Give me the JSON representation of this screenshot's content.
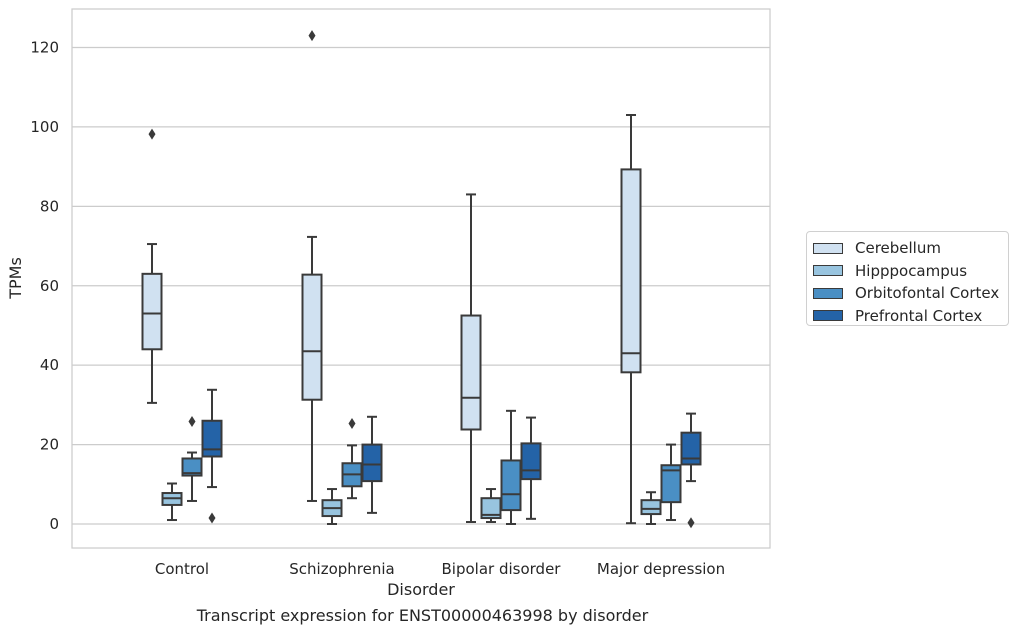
{
  "chart_data": {
    "type": "box",
    "caption": "Transcript expression for ENST00000463998 by disorder",
    "xlabel": "Disorder",
    "ylabel": "TPMs",
    "ylim": [
      -6,
      130
    ],
    "yticks": [
      0,
      20,
      40,
      60,
      80,
      100,
      120
    ],
    "grid": "horizontal",
    "legend_position": "right",
    "categories": [
      "Control",
      "Schizophrenia",
      "Bipolar disorder",
      "Major depression"
    ],
    "series": [
      {
        "name": "Cerebellum",
        "color": "#d0e1f1",
        "boxes": [
          {
            "whislo": 30.5,
            "q1": 44,
            "med": 53,
            "q3": 63,
            "whishi": 70.5,
            "fliers": [
              98.2
            ]
          },
          {
            "whislo": 5.8,
            "q1": 31.3,
            "med": 43.5,
            "q3": 62.8,
            "whishi": 72.3,
            "fliers": [
              123
            ]
          },
          {
            "whislo": 0.5,
            "q1": 23.8,
            "med": 31.8,
            "q3": 52.5,
            "whishi": 83,
            "fliers": []
          },
          {
            "whislo": 0.2,
            "q1": 38.2,
            "med": 43,
            "q3": 89.3,
            "whishi": 103,
            "fliers": []
          }
        ]
      },
      {
        "name": "Hipppocampus",
        "color": "#98c4df",
        "boxes": [
          {
            "whislo": 1,
            "q1": 4.8,
            "med": 6.5,
            "q3": 7.8,
            "whishi": 10.2,
            "fliers": []
          },
          {
            "whislo": 0,
            "q1": 2,
            "med": 4,
            "q3": 6,
            "whishi": 8.8,
            "fliers": []
          },
          {
            "whislo": 0.5,
            "q1": 1.5,
            "med": 2.3,
            "q3": 6.5,
            "whishi": 8.8,
            "fliers": []
          },
          {
            "whislo": 0,
            "q1": 2.5,
            "med": 3.8,
            "q3": 6,
            "whishi": 8,
            "fliers": []
          }
        ]
      },
      {
        "name": "Orbitofontal Cortex",
        "color": "#4a8fc4",
        "boxes": [
          {
            "whislo": 5.8,
            "q1": 12.2,
            "med": 12.8,
            "q3": 16.5,
            "whishi": 18,
            "fliers": [
              25.8
            ]
          },
          {
            "whislo": 6.5,
            "q1": 9.5,
            "med": 12.5,
            "q3": 15.3,
            "whishi": 19.8,
            "fliers": [
              25.3
            ]
          },
          {
            "whislo": 0,
            "q1": 3.5,
            "med": 7.5,
            "q3": 16,
            "whishi": 28.5,
            "fliers": []
          },
          {
            "whislo": 1,
            "q1": 5.5,
            "med": 13.5,
            "q3": 14.8,
            "whishi": 20,
            "fliers": []
          }
        ]
      },
      {
        "name": "Prefrontal Cortex",
        "color": "#2463a7",
        "boxes": [
          {
            "whislo": 9.3,
            "q1": 17,
            "med": 18.8,
            "q3": 26,
            "whishi": 33.8,
            "fliers": [
              1.5
            ]
          },
          {
            "whislo": 2.8,
            "q1": 10.8,
            "med": 15,
            "q3": 20,
            "whishi": 27,
            "fliers": []
          },
          {
            "whislo": 1.3,
            "q1": 11.3,
            "med": 13.5,
            "q3": 20.3,
            "whishi": 26.8,
            "fliers": []
          },
          {
            "whislo": 10.8,
            "q1": 15,
            "med": 16.5,
            "q3": 23,
            "whishi": 27.8,
            "fliers": [
              0.3
            ]
          }
        ]
      }
    ]
  }
}
